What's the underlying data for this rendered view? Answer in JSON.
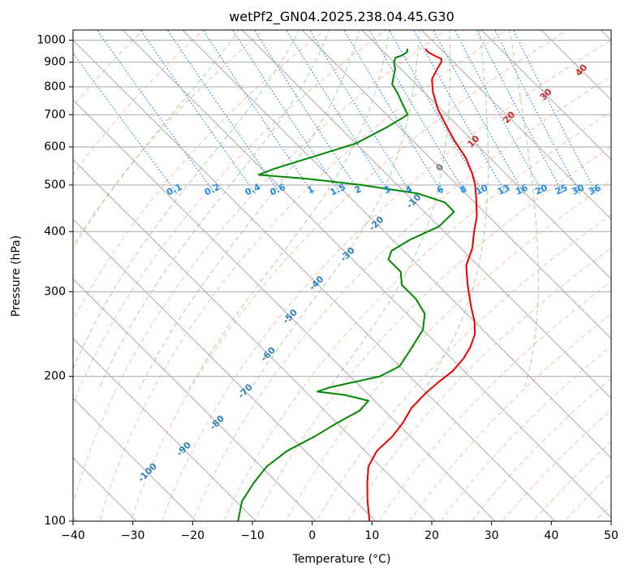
{
  "chart_data": {
    "type": "line",
    "title": "wetPf2_GN04.2025.238.04.45.G30",
    "xlabel": "Temperature (°C)",
    "ylabel": "Pressure (hPa)",
    "xlim": [
      -40,
      50
    ],
    "ylim": [
      1050,
      100
    ],
    "y_scale": "log",
    "x_ticks": [
      "−40",
      "−30",
      "−20",
      "−10",
      "0",
      "10",
      "20",
      "30",
      "40",
      "50"
    ],
    "y_ticks": [
      "100",
      "200",
      "300",
      "400",
      "500",
      "600",
      "700",
      "800",
      "900",
      "1000"
    ],
    "grid": true,
    "skew": 35,
    "series": [
      {
        "color": "#ee0000",
        "kind": "temperature",
        "points": [
          [
            17.5,
            960
          ],
          [
            17.4,
            945
          ],
          [
            18.0,
            925
          ],
          [
            18.5,
            915
          ],
          [
            18.0,
            902
          ],
          [
            16.0,
            870
          ],
          [
            13.5,
            830
          ],
          [
            11.5,
            780
          ],
          [
            9.5,
            720
          ],
          [
            8.5,
            680
          ],
          [
            7.0,
            620
          ],
          [
            6.0,
            570
          ],
          [
            4.5,
            530
          ],
          [
            3.0,
            500
          ],
          [
            1.0,
            470
          ],
          [
            -2.0,
            430
          ],
          [
            -5.0,
            400
          ],
          [
            -8.0,
            370
          ],
          [
            -12.0,
            340
          ],
          [
            -15.0,
            310
          ],
          [
            -18.0,
            280
          ],
          [
            -20.0,
            260
          ],
          [
            -22.0,
            245
          ],
          [
            -25.0,
            230
          ],
          [
            -28.0,
            218
          ],
          [
            -32.0,
            205
          ],
          [
            -36.0,
            195
          ],
          [
            -40.0,
            185
          ],
          [
            -45.0,
            172
          ],
          [
            -49.0,
            160
          ],
          [
            -53.0,
            150
          ],
          [
            -58.0,
            140
          ],
          [
            -62.0,
            130
          ],
          [
            -65.0,
            120
          ],
          [
            -68.0,
            110
          ],
          [
            -71.0,
            100
          ]
        ]
      },
      {
        "color": "#008800",
        "kind": "dewpoint",
        "points": [
          [
            14.5,
            960
          ],
          [
            13.9,
            945
          ],
          [
            12.5,
            930
          ],
          [
            11.0,
            920
          ],
          [
            10.0,
            900
          ],
          [
            9.0,
            870
          ],
          [
            7.5,
            840
          ],
          [
            6.0,
            810
          ],
          [
            5.5,
            780
          ],
          [
            4.5,
            740
          ],
          [
            3.5,
            700
          ],
          [
            -2.0,
            660
          ],
          [
            -10.0,
            610
          ],
          [
            -20.0,
            570
          ],
          [
            -28.0,
            540
          ],
          [
            -31.5,
            525
          ],
          [
            -24.0,
            515
          ],
          [
            -16.0,
            500
          ],
          [
            -8.0,
            480
          ],
          [
            -5.0,
            460
          ],
          [
            -5.0,
            440
          ],
          [
            -10.0,
            410
          ],
          [
            -17.0,
            385
          ],
          [
            -22.0,
            365
          ],
          [
            -24.0,
            350
          ],
          [
            -24.0,
            330
          ],
          [
            -26.0,
            310
          ],
          [
            -26.0,
            290
          ],
          [
            -27.0,
            270
          ],
          [
            -30.0,
            250
          ],
          [
            -36.0,
            225
          ],
          [
            -40.0,
            210
          ],
          [
            -45.0,
            200
          ],
          [
            -55.0,
            190
          ],
          [
            -58.0,
            186
          ],
          [
            -54.0,
            183
          ],
          [
            -51.0,
            178
          ],
          [
            -54.0,
            170
          ],
          [
            -60.0,
            160
          ],
          [
            -66.0,
            150
          ],
          [
            -73.0,
            140
          ],
          [
            -79.0,
            130
          ],
          [
            -84.0,
            120
          ],
          [
            -89.0,
            110
          ],
          [
            -93.0,
            100
          ]
        ]
      }
    ],
    "isotherm_labels": [
      "-100",
      "-90",
      "-80",
      "-70",
      "-60",
      "-50",
      "-40",
      "-30",
      "-20",
      "-10",
      "0",
      "10",
      "20",
      "30",
      "40"
    ],
    "mixing_ratio_labels": [
      "0.1",
      "0.2",
      "0.4",
      "0.6",
      "1",
      "1.5",
      "2",
      "3",
      "4",
      "6",
      "8",
      "10",
      "13",
      "16",
      "20",
      "25",
      "30",
      "36"
    ],
    "colors": {
      "temperature": "#ee0000",
      "dewpoint": "#008800",
      "isotherm": "#aaaaaa",
      "dry_adiabat": "#f4a582",
      "moist_adiabat": "#7fbf7b",
      "mixing_ratio": "#1f8ae8",
      "label_cold": "#2c7fb8",
      "label_warm": "#d62728",
      "label_zero": "#777777"
    }
  }
}
